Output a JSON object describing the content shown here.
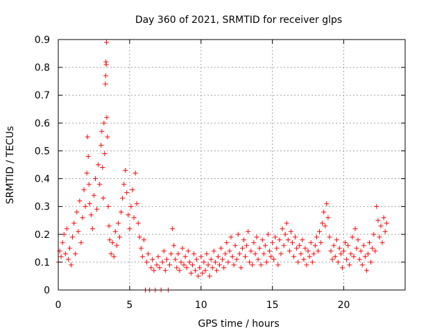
{
  "chart_data": {
    "type": "scatter",
    "title": "Day 360 of 2021, SRMTID for receiver glps",
    "xlabel": "GPS time / hours",
    "ylabel": "SRMTID / TECUs",
    "xlim": [
      0,
      24.3
    ],
    "ylim": [
      0,
      0.9
    ],
    "x_ticks": [
      0,
      5,
      10,
      15,
      20
    ],
    "x_tick_labels": [
      "0",
      "5",
      "10",
      "15",
      "20"
    ],
    "y_ticks": [
      0,
      0.1,
      0.2,
      0.3,
      0.4,
      0.5,
      0.6,
      0.7,
      0.8,
      0.9
    ],
    "y_tick_labels": [
      "0",
      "0.1",
      "0.2",
      "0.3",
      "0.4",
      "0.5",
      "0.6",
      "0.7",
      "0.8",
      "0.9"
    ],
    "grid": true,
    "marker": "+",
    "series": [
      {
        "name": "SRMTID",
        "color": "#ff0000",
        "points": [
          [
            0.0,
            0.1
          ],
          [
            0.1,
            0.14
          ],
          [
            0.2,
            0.12
          ],
          [
            0.3,
            0.17
          ],
          [
            0.4,
            0.2
          ],
          [
            0.5,
            0.13
          ],
          [
            0.6,
            0.22
          ],
          [
            0.7,
            0.11
          ],
          [
            0.8,
            0.15
          ],
          [
            0.9,
            0.09
          ],
          [
            1.0,
            0.19
          ],
          [
            1.1,
            0.24
          ],
          [
            1.2,
            0.13
          ],
          [
            1.3,
            0.28
          ],
          [
            1.4,
            0.21
          ],
          [
            1.5,
            0.32
          ],
          [
            1.6,
            0.17
          ],
          [
            1.7,
            0.26
          ],
          [
            1.8,
            0.36
          ],
          [
            1.9,
            0.3
          ],
          [
            2.0,
            0.42
          ],
          [
            2.05,
            0.55
          ],
          [
            2.1,
            0.48
          ],
          [
            2.15,
            0.38
          ],
          [
            2.2,
            0.31
          ],
          [
            2.3,
            0.27
          ],
          [
            2.4,
            0.22
          ],
          [
            2.5,
            0.34
          ],
          [
            2.6,
            0.4
          ],
          [
            2.7,
            0.29
          ],
          [
            2.8,
            0.45
          ],
          [
            2.9,
            0.38
          ],
          [
            3.0,
            0.52
          ],
          [
            3.05,
            0.57
          ],
          [
            3.1,
            0.44
          ],
          [
            3.15,
            0.33
          ],
          [
            3.2,
            0.6
          ],
          [
            3.25,
            0.49
          ],
          [
            3.3,
            0.74
          ],
          [
            3.32,
            0.77
          ],
          [
            3.34,
            0.82
          ],
          [
            3.36,
            0.81
          ],
          [
            3.38,
            0.89
          ],
          [
            3.4,
            0.62
          ],
          [
            3.45,
            0.55
          ],
          [
            3.5,
            0.3
          ],
          [
            3.55,
            0.23
          ],
          [
            3.6,
            0.18
          ],
          [
            3.7,
            0.13
          ],
          [
            3.8,
            0.17
          ],
          [
            3.9,
            0.12
          ],
          [
            4.0,
            0.21
          ],
          [
            4.1,
            0.16
          ],
          [
            4.2,
            0.24
          ],
          [
            4.3,
            0.19
          ],
          [
            4.4,
            0.28
          ],
          [
            4.5,
            0.33
          ],
          [
            4.6,
            0.38
          ],
          [
            4.7,
            0.43
          ],
          [
            4.8,
            0.35
          ],
          [
            4.9,
            0.27
          ],
          [
            5.0,
            0.22
          ],
          [
            5.1,
            0.3
          ],
          [
            5.2,
            0.36
          ],
          [
            5.3,
            0.26
          ],
          [
            5.4,
            0.42
          ],
          [
            5.5,
            0.31
          ],
          [
            5.6,
            0.24
          ],
          [
            5.7,
            0.19
          ],
          [
            5.8,
            0.15
          ],
          [
            5.9,
            0.12
          ],
          [
            6.0,
            0.18
          ],
          [
            6.1,
            0.0
          ],
          [
            6.2,
            0.1
          ],
          [
            6.3,
            0.13
          ],
          [
            6.4,
            0.0
          ],
          [
            6.5,
            0.08
          ],
          [
            6.6,
            0.11
          ],
          [
            6.7,
            0.07
          ],
          [
            6.8,
            0.0
          ],
          [
            6.9,
            0.09
          ],
          [
            7.0,
            0.12
          ],
          [
            7.1,
            0.08
          ],
          [
            7.2,
            0.0
          ],
          [
            7.3,
            0.1
          ],
          [
            7.4,
            0.14
          ],
          [
            7.5,
            0.07
          ],
          [
            7.6,
            0.11
          ],
          [
            7.7,
            0.0
          ],
          [
            7.8,
            0.09
          ],
          [
            7.9,
            0.13
          ],
          [
            8.0,
            0.22
          ],
          [
            8.1,
            0.16
          ],
          [
            8.2,
            0.11
          ],
          [
            8.3,
            0.08
          ],
          [
            8.4,
            0.13
          ],
          [
            8.5,
            0.07
          ],
          [
            8.6,
            0.1
          ],
          [
            8.7,
            0.15
          ],
          [
            8.8,
            0.09
          ],
          [
            8.9,
            0.12
          ],
          [
            9.0,
            0.08
          ],
          [
            9.1,
            0.14
          ],
          [
            9.2,
            0.1
          ],
          [
            9.3,
            0.06
          ],
          [
            9.4,
            0.09
          ],
          [
            9.5,
            0.13
          ],
          [
            9.6,
            0.07
          ],
          [
            9.7,
            0.11
          ],
          [
            9.8,
            0.05
          ],
          [
            9.9,
            0.08
          ],
          [
            10.0,
            0.12
          ],
          [
            10.1,
            0.06
          ],
          [
            10.2,
            0.1
          ],
          [
            10.3,
            0.07
          ],
          [
            10.4,
            0.13
          ],
          [
            10.5,
            0.09
          ],
          [
            10.6,
            0.05
          ],
          [
            10.7,
            0.11
          ],
          [
            10.8,
            0.08
          ],
          [
            10.9,
            0.14
          ],
          [
            11.0,
            0.1
          ],
          [
            11.1,
            0.07
          ],
          [
            11.2,
            0.12
          ],
          [
            11.3,
            0.09
          ],
          [
            11.4,
            0.15
          ],
          [
            11.5,
            0.11
          ],
          [
            11.6,
            0.08
          ],
          [
            11.7,
            0.13
          ],
          [
            11.8,
            0.17
          ],
          [
            11.9,
            0.1
          ],
          [
            12.0,
            0.14
          ],
          [
            12.1,
            0.19
          ],
          [
            12.2,
            0.12
          ],
          [
            12.3,
            0.09
          ],
          [
            12.4,
            0.16
          ],
          [
            12.5,
            0.11
          ],
          [
            12.6,
            0.2
          ],
          [
            12.7,
            0.13
          ],
          [
            12.8,
            0.08
          ],
          [
            12.9,
            0.15
          ],
          [
            13.0,
            0.18
          ],
          [
            13.1,
            0.12
          ],
          [
            13.2,
            0.16
          ],
          [
            13.3,
            0.21
          ],
          [
            13.4,
            0.1
          ],
          [
            13.5,
            0.14
          ],
          [
            13.6,
            0.09
          ],
          [
            13.7,
            0.17
          ],
          [
            13.8,
            0.13
          ],
          [
            13.9,
            0.19
          ],
          [
            14.0,
            0.11
          ],
          [
            14.1,
            0.15
          ],
          [
            14.2,
            0.09
          ],
          [
            14.3,
            0.18
          ],
          [
            14.4,
            0.13
          ],
          [
            14.5,
            0.16
          ],
          [
            14.6,
            0.1
          ],
          [
            14.7,
            0.2
          ],
          [
            14.8,
            0.14
          ],
          [
            14.9,
            0.12
          ],
          [
            15.0,
            0.17
          ],
          [
            15.1,
            0.11
          ],
          [
            15.2,
            0.19
          ],
          [
            15.3,
            0.15
          ],
          [
            15.4,
            0.09
          ],
          [
            15.5,
            0.18
          ],
          [
            15.6,
            0.13
          ],
          [
            15.7,
            0.22
          ],
          [
            15.8,
            0.16
          ],
          [
            15.9,
            0.2
          ],
          [
            16.0,
            0.24
          ],
          [
            16.1,
            0.18
          ],
          [
            16.2,
            0.14
          ],
          [
            16.3,
            0.21
          ],
          [
            16.4,
            0.17
          ],
          [
            16.5,
            0.12
          ],
          [
            16.6,
            0.19
          ],
          [
            16.7,
            0.15
          ],
          [
            16.8,
            0.1
          ],
          [
            16.9,
            0.16
          ],
          [
            17.0,
            0.13
          ],
          [
            17.1,
            0.18
          ],
          [
            17.2,
            0.11
          ],
          [
            17.3,
            0.15
          ],
          [
            17.4,
            0.09
          ],
          [
            17.5,
            0.14
          ],
          [
            17.6,
            0.12
          ],
          [
            17.7,
            0.17
          ],
          [
            17.8,
            0.1
          ],
          [
            17.9,
            0.13
          ],
          [
            18.0,
            0.16
          ],
          [
            18.1,
            0.19
          ],
          [
            18.2,
            0.14
          ],
          [
            18.3,
            0.21
          ],
          [
            18.4,
            0.17
          ],
          [
            18.5,
            0.24
          ],
          [
            18.6,
            0.28
          ],
          [
            18.7,
            0.23
          ],
          [
            18.8,
            0.31
          ],
          [
            18.9,
            0.26
          ],
          [
            19.0,
            0.19
          ],
          [
            19.1,
            0.14
          ],
          [
            19.2,
            0.11
          ],
          [
            19.3,
            0.16
          ],
          [
            19.4,
            0.12
          ],
          [
            19.5,
            0.18
          ],
          [
            19.6,
            0.1
          ],
          [
            19.7,
            0.15
          ],
          [
            19.8,
            0.13
          ],
          [
            19.9,
            0.08
          ],
          [
            20.0,
            0.14
          ],
          [
            20.1,
            0.17
          ],
          [
            20.2,
            0.11
          ],
          [
            20.3,
            0.16
          ],
          [
            20.4,
            0.09
          ],
          [
            20.5,
            0.13
          ],
          [
            20.6,
            0.19
          ],
          [
            20.7,
            0.12
          ],
          [
            20.8,
            0.22
          ],
          [
            20.9,
            0.15
          ],
          [
            21.0,
            0.18
          ],
          [
            21.1,
            0.11
          ],
          [
            21.2,
            0.14
          ],
          [
            21.3,
            0.09
          ],
          [
            21.4,
            0.16
          ],
          [
            21.5,
            0.12
          ],
          [
            21.6,
            0.07
          ],
          [
            21.7,
            0.13
          ],
          [
            21.8,
            0.17
          ],
          [
            21.9,
            0.1
          ],
          [
            22.0,
            0.15
          ],
          [
            22.1,
            0.2
          ],
          [
            22.2,
            0.14
          ],
          [
            22.3,
            0.3
          ],
          [
            22.4,
            0.25
          ],
          [
            22.5,
            0.19
          ],
          [
            22.6,
            0.23
          ],
          [
            22.7,
            0.17
          ],
          [
            22.8,
            0.26
          ],
          [
            22.9,
            0.21
          ],
          [
            23.0,
            0.24
          ]
        ]
      }
    ]
  }
}
